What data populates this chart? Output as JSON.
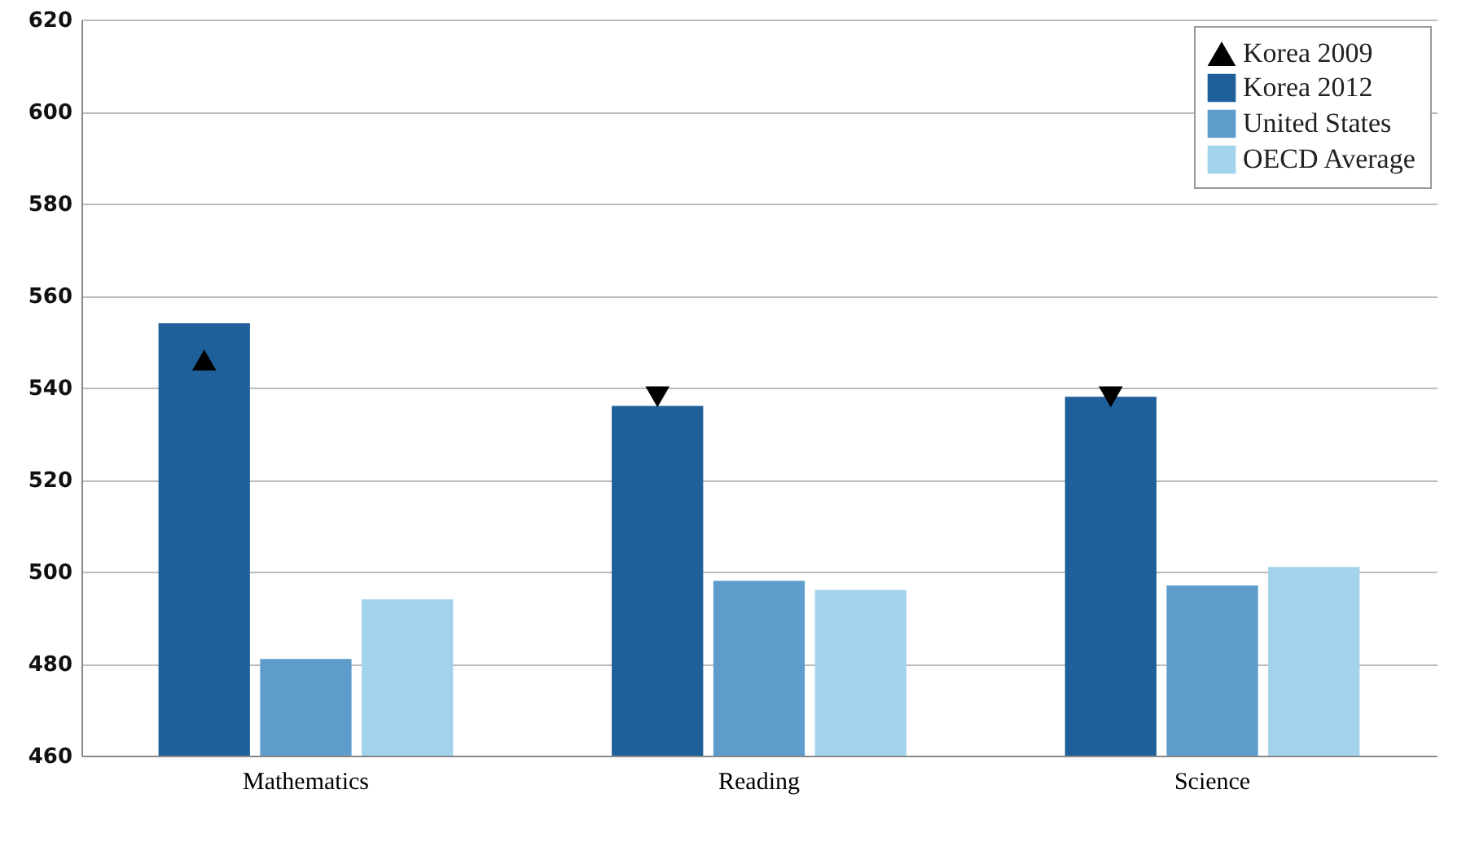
{
  "chart_data": {
    "type": "bar",
    "categories": [
      "Mathematics",
      "Reading",
      "Science"
    ],
    "series": [
      {
        "name": "Korea 2009",
        "type": "scatter",
        "marker": "triangle",
        "color": "#000000",
        "values": [
          546,
          538,
          538
        ]
      },
      {
        "name": "Korea 2012",
        "color": "#1f5f9a",
        "values": [
          554,
          536,
          538
        ]
      },
      {
        "name": "United States",
        "color": "#5e9ccb",
        "values": [
          481,
          498,
          497
        ]
      },
      {
        "name": "OECD Average",
        "color": "#a3d3ec",
        "values": [
          494,
          496,
          501
        ]
      }
    ],
    "ylim": [
      460,
      620
    ],
    "yticks": [
      460,
      480,
      500,
      520,
      540,
      560,
      580,
      600,
      620
    ],
    "grid": "y",
    "legend": "top right"
  }
}
